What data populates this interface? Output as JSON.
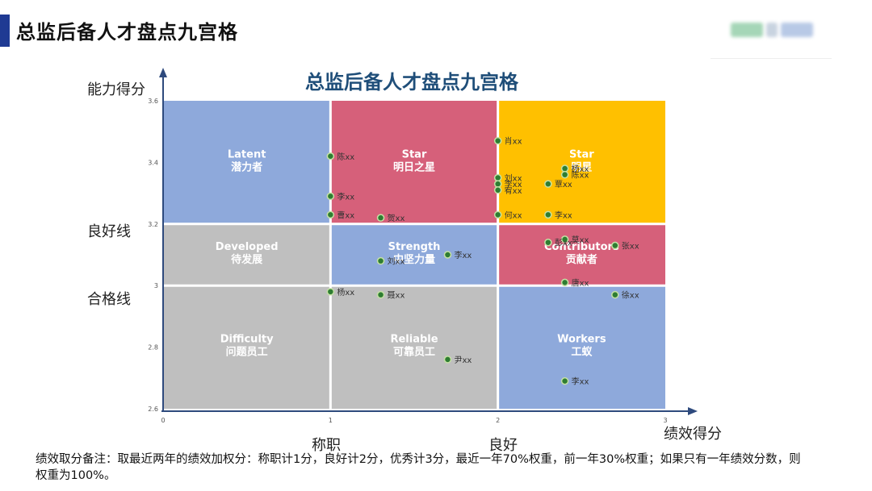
{
  "page": {
    "title": "总监后备人才盘点九宫格",
    "footnote": "绩效取分备注：取最近两年的绩效加权分：称职计1分，良好计2分，优秀计3分，最近一年70%权重，前一年30%权重；如果只有一年绩效分数，则权重为100%。"
  },
  "labels": {
    "y_axis": "能力得分",
    "x_axis": "绩效得分",
    "y_ref_good": "良好线",
    "y_ref_pass": "合格线",
    "x_ref_competent": "称职",
    "x_ref_good": "良好"
  },
  "chart_data": {
    "type": "scatter",
    "title": "总监后备人才盘点九宫格",
    "xlabel": "绩效得分",
    "ylabel": "能力得分",
    "xlim": [
      0,
      3
    ],
    "ylim": [
      2.6,
      3.6
    ],
    "x_ticks": [
      "0",
      "1",
      "2",
      "3"
    ],
    "y_ticks": [
      "2.6",
      "2.8",
      "3",
      "3.2",
      "3.4",
      "3.6"
    ],
    "x_boundaries": [
      1,
      2
    ],
    "y_boundaries": [
      3.0,
      3.2
    ],
    "grid": false,
    "cells": [
      {
        "col": 0,
        "row": 2,
        "en": "Latent",
        "cn": "潜力者",
        "color": "#8ea9db"
      },
      {
        "col": 1,
        "row": 2,
        "en": "Star",
        "cn": "明日之星",
        "color": "#d6607a"
      },
      {
        "col": 2,
        "row": 2,
        "en": "Star",
        "cn": "明星",
        "color": "#ffc000"
      },
      {
        "col": 0,
        "row": 1,
        "en": "Developed",
        "cn": "待发展",
        "color": "#bfbfbf"
      },
      {
        "col": 1,
        "row": 1,
        "en": "Strength",
        "cn": "中坚力量",
        "color": "#8ea9db"
      },
      {
        "col": 2,
        "row": 1,
        "en": "Contributors",
        "cn": "贡献者",
        "color": "#d6607a"
      },
      {
        "col": 0,
        "row": 0,
        "en": "Difficulty",
        "cn": "问题员工",
        "color": "#bfbfbf"
      },
      {
        "col": 1,
        "row": 0,
        "en": "Reliable",
        "cn": "可靠员工",
        "color": "#bfbfbf"
      },
      {
        "col": 2,
        "row": 0,
        "en": "Workers",
        "cn": "工蚁",
        "color": "#8ea9db"
      }
    ],
    "points": [
      {
        "x": 1.0,
        "y": 3.42,
        "label": "陈xx"
      },
      {
        "x": 1.0,
        "y": 3.29,
        "label": "李xx"
      },
      {
        "x": 1.0,
        "y": 3.23,
        "label": "曹xx"
      },
      {
        "x": 1.3,
        "y": 3.22,
        "label": "贺xx"
      },
      {
        "x": 1.3,
        "y": 3.08,
        "label": "刘xx"
      },
      {
        "x": 1.7,
        "y": 3.1,
        "label": "李xx"
      },
      {
        "x": 1.0,
        "y": 2.98,
        "label": "杨xx"
      },
      {
        "x": 1.3,
        "y": 2.97,
        "label": "聂xx"
      },
      {
        "x": 1.7,
        "y": 2.76,
        "label": "尹xx"
      },
      {
        "x": 2.0,
        "y": 3.47,
        "label": "肖xx"
      },
      {
        "x": 2.0,
        "y": 3.35,
        "label": "刘xx"
      },
      {
        "x": 2.0,
        "y": 3.33,
        "label": "李xx"
      },
      {
        "x": 2.0,
        "y": 3.31,
        "label": "宥xx"
      },
      {
        "x": 2.0,
        "y": 3.23,
        "label": "何xx"
      },
      {
        "x": 2.4,
        "y": 3.38,
        "label": "杨xx"
      },
      {
        "x": 2.4,
        "y": 3.36,
        "label": "陈xx"
      },
      {
        "x": 2.3,
        "y": 3.33,
        "label": "覃xx"
      },
      {
        "x": 2.3,
        "y": 3.23,
        "label": "李xx"
      },
      {
        "x": 2.4,
        "y": 3.15,
        "label": "莫xx"
      },
      {
        "x": 2.3,
        "y": 3.14,
        "label": "彭xx"
      },
      {
        "x": 2.7,
        "y": 3.13,
        "label": "张xx"
      },
      {
        "x": 2.4,
        "y": 3.01,
        "label": "唐xx"
      },
      {
        "x": 2.7,
        "y": 2.97,
        "label": "徐xx"
      },
      {
        "x": 2.4,
        "y": 2.69,
        "label": "李xx"
      }
    ],
    "colors": {
      "axis": "#2e4a7d",
      "title": "#1f4e79",
      "point_fill": "#2e7d32",
      "point_stroke": "#c5e1a5",
      "divider": "#ffffff"
    }
  }
}
